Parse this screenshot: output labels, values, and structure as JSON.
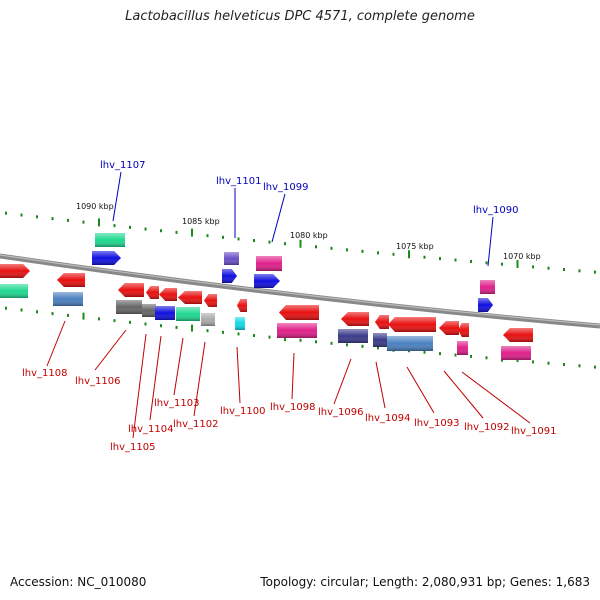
{
  "title": "Lactobacillus helveticus DPC 4571, complete genome",
  "accession": "Accession: NC_010080",
  "topology": "Topology: circular; Length: 2,080,931 bp; Genes: 1,683",
  "colors": {
    "red": "#e81010",
    "blue": "#1010e0",
    "green": "#20d890",
    "steel": "#4a80c0",
    "navy": "#3a3a8a",
    "gray": "#666666",
    "lightgray": "#aaaaaa",
    "magenta": "#e0208a",
    "violet": "#6a50c8",
    "cyan": "#10d8e8",
    "backbone": "#888888",
    "tick": "#1a8a1a",
    "label_blue": "#0000c0",
    "label_red": "#c00000"
  },
  "scale_labels": [
    "1090 kbp",
    "1085 kbp",
    "1080 kbp",
    "1075 kbp",
    "1070 kbp"
  ],
  "top_labels": [
    "lhv_1107",
    "lhv_1101",
    "lhv_1099",
    "lhv_1090"
  ],
  "bottom_labels": [
    "lhv_1108",
    "lhv_1106",
    "lhv_1105",
    "lhv_1104",
    "lhv_1103",
    "lhv_1102",
    "lhv_1100",
    "lhv_1098",
    "lhv_1096",
    "lhv_1094",
    "lhv_1093",
    "lhv_1092",
    "lhv_1091"
  ]
}
